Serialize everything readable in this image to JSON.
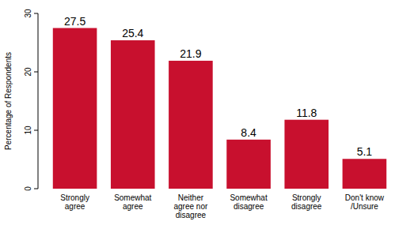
{
  "chart_data": {
    "type": "bar",
    "y_label": "Percentage of Respondents",
    "categories": [
      "Strongly agree",
      "Somewhat agree",
      "Neither agree nor disagree",
      "Somewhat disagree",
      "Strongly disagree",
      "Don't know /Unsure"
    ],
    "values": [
      27.5,
      25.4,
      21.9,
      8.4,
      11.8,
      5.1
    ],
    "color": "#c8102e",
    "ylim": [
      0,
      30
    ],
    "yticks": [
      0,
      10,
      20,
      30
    ],
    "grid": false,
    "data_labels": true
  }
}
